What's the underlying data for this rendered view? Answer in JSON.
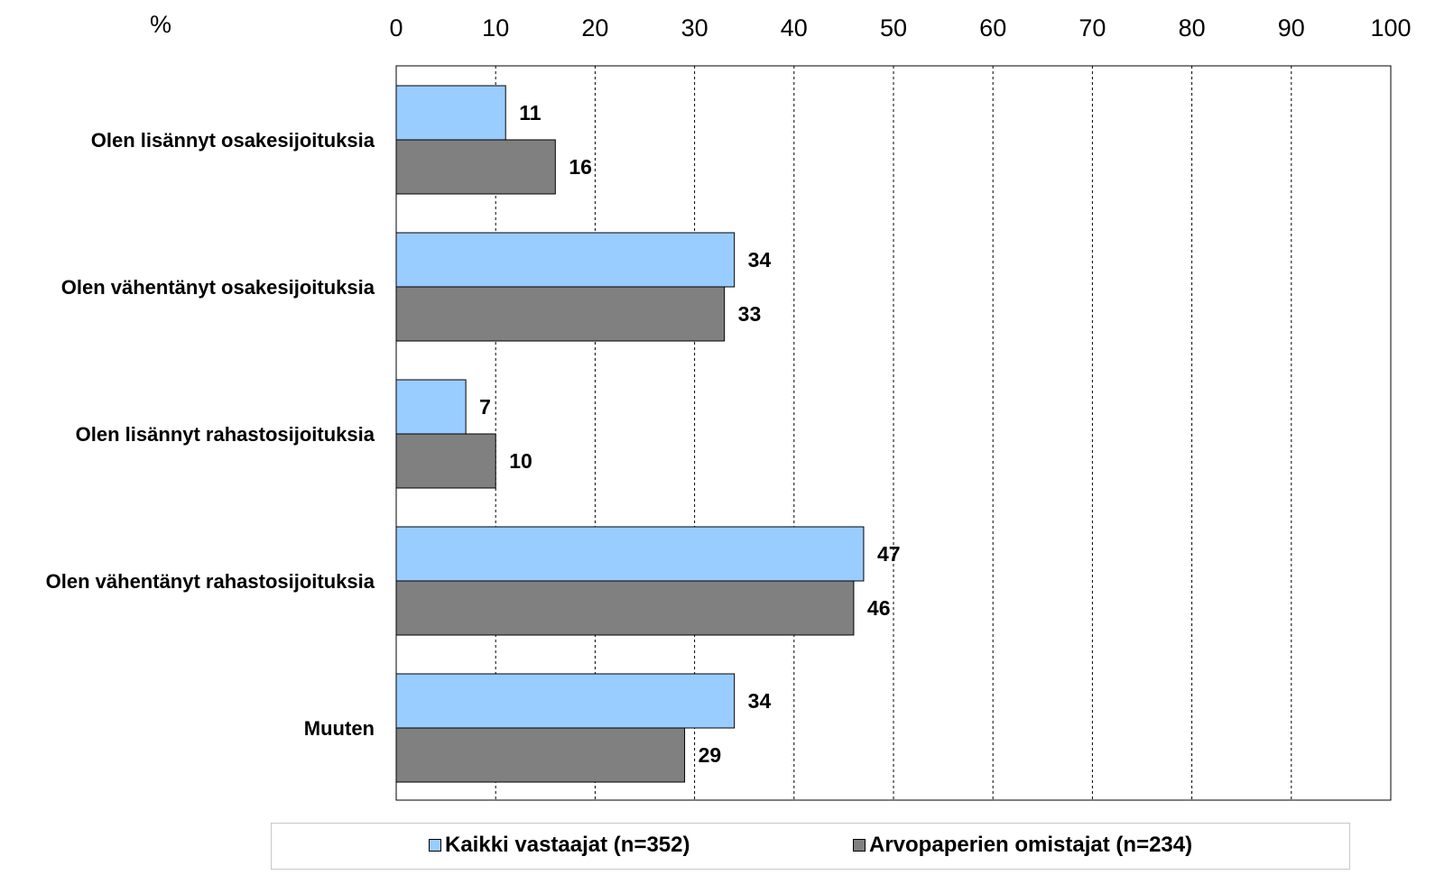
{
  "chart_data": {
    "type": "bar",
    "orientation": "horizontal",
    "unit_label": "%",
    "xlim": [
      0,
      100
    ],
    "x_ticks": [
      0,
      10,
      20,
      30,
      40,
      50,
      60,
      70,
      80,
      90,
      100
    ],
    "x_tick_position": "top",
    "grid": "vertical dashed",
    "categories": [
      "Olen lisännyt osakesijoituksia",
      "Olen vähentänyt osakesijoituksia",
      "Olen lisännyt rahastosijoituksia",
      "Olen vähentänyt rahastosijoituksia",
      "Muuten"
    ],
    "series": [
      {
        "name": "Kaikki vastaajat (n=352)",
        "color": "#99ccff",
        "values": [
          11,
          34,
          7,
          47,
          34
        ]
      },
      {
        "name": "Arvopaperien omistajat (n=234)",
        "color": "#808080",
        "values": [
          16,
          33,
          10,
          46,
          29
        ]
      }
    ],
    "legend_position": "bottom"
  }
}
